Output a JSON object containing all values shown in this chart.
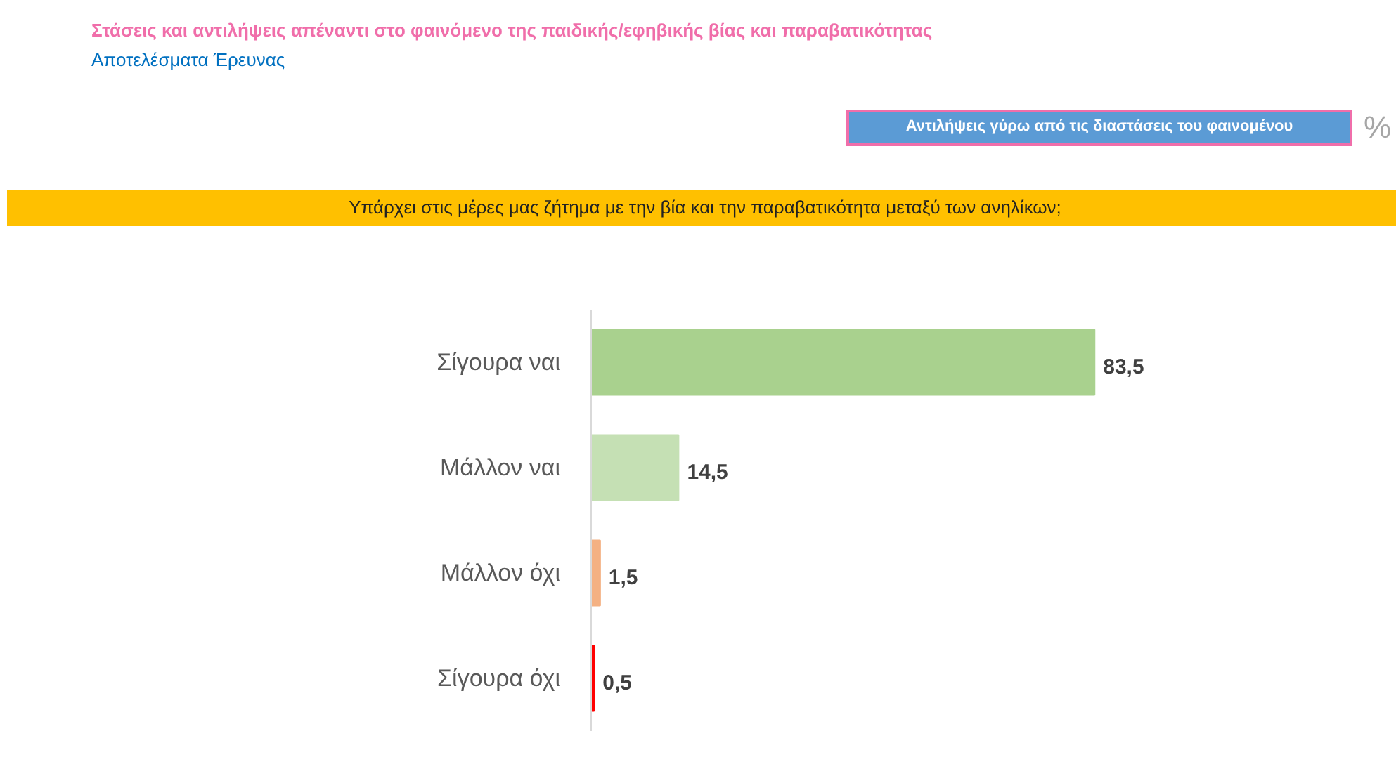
{
  "chart_data": {
    "type": "bar",
    "orientation": "horizontal",
    "title": "Στάσεις και αντιλήψεις απέναντι στο φαινόμενο της παιδικής/εφηβικής βίας και παραβατικότητας",
    "subtitle": "Αποτελέσματα Έρευνας",
    "annotations": [
      "Αντιλήψεις γύρω από τις διαστάσεις του φαινομένου",
      "%",
      "Υπάρχει στις μέρες μας ζήτημα με την βία και την παραβατικότητα μεταξύ των ανηλίκων;"
    ],
    "categories": [
      "Σίγουρα ναι",
      "Μάλλον ναι",
      "Μάλλον όχι",
      "Σίγουρα όχι"
    ],
    "values": [
      83.5,
      14.5,
      1.5,
      0.5
    ],
    "colors": [
      "#a9d18e",
      "#c5e0b4",
      "#f4b183",
      "#ff0000"
    ],
    "value_labels": [
      "83,5",
      "14,5",
      "1,5",
      "0,5"
    ]
  }
}
